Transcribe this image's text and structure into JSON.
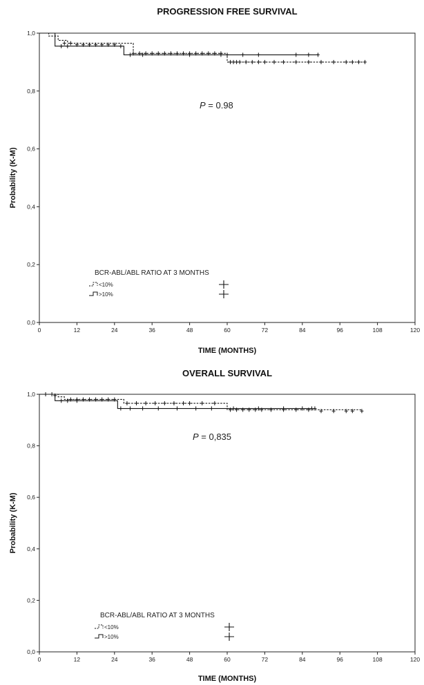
{
  "chart_data": [
    {
      "type": "line",
      "title": "PROGRESSION FREE SURVIVAL",
      "xlabel": "TIME (MONTHS)",
      "ylabel": "Probability (K-M)",
      "xlim": [
        0,
        120
      ],
      "ylim": [
        0.0,
        1.0
      ],
      "xticks": [
        "0",
        "12",
        "24",
        "36",
        "48",
        "60",
        "72",
        "84",
        "96",
        "108",
        "120"
      ],
      "yticks": [
        "0,0",
        "0,2",
        "0,4",
        "0,6",
        "0,8",
        "1,0"
      ],
      "grid": false,
      "annotation": {
        "p_symbol": "P",
        "p_text": "= 0.98"
      },
      "legend": {
        "title": "BCR-ABL/ABL RATIO AT 3 MONTHS",
        "position": "bottom-left",
        "entries": [
          {
            "label": "<10%",
            "line_style": "dashed"
          },
          {
            "label": ">10%",
            "line_style": "solid"
          }
        ]
      },
      "series": [
        {
          "name": "<10%",
          "line_style": "dashed",
          "steps": [
            [
              0,
              1.0
            ],
            [
              3,
              0.99
            ],
            [
              6,
              0.975
            ],
            [
              9,
              0.965
            ],
            [
              30,
              0.93
            ],
            [
              60,
              0.9
            ],
            [
              104,
              0.9
            ]
          ],
          "censored": [
            [
              8,
              0.965
            ],
            [
              10,
              0.965
            ],
            [
              12,
              0.96
            ],
            [
              14,
              0.96
            ],
            [
              16,
              0.96
            ],
            [
              18,
              0.96
            ],
            [
              20,
              0.96
            ],
            [
              22,
              0.96
            ],
            [
              24,
              0.96
            ],
            [
              30,
              0.93
            ],
            [
              32,
              0.93
            ],
            [
              34,
              0.93
            ],
            [
              36,
              0.93
            ],
            [
              38,
              0.93
            ],
            [
              40,
              0.93
            ],
            [
              42,
              0.93
            ],
            [
              44,
              0.93
            ],
            [
              46,
              0.93
            ],
            [
              48,
              0.93
            ],
            [
              50,
              0.93
            ],
            [
              52,
              0.93
            ],
            [
              54,
              0.93
            ],
            [
              56,
              0.93
            ],
            [
              58,
              0.93
            ],
            [
              61,
              0.9
            ],
            [
              62,
              0.9
            ],
            [
              63,
              0.9
            ],
            [
              64,
              0.9
            ],
            [
              66,
              0.9
            ],
            [
              68,
              0.9
            ],
            [
              70,
              0.9
            ],
            [
              72,
              0.9
            ],
            [
              75,
              0.9
            ],
            [
              78,
              0.9
            ],
            [
              82,
              0.9
            ],
            [
              86,
              0.9
            ],
            [
              90,
              0.9
            ],
            [
              94,
              0.9
            ],
            [
              98,
              0.9
            ],
            [
              100,
              0.9
            ],
            [
              102,
              0.9
            ],
            [
              104,
              0.9
            ]
          ]
        },
        {
          "name": ">10%",
          "line_style": "solid",
          "steps": [
            [
              0,
              1.0
            ],
            [
              5,
              0.955
            ],
            [
              27,
              0.925
            ],
            [
              89,
              0.925
            ]
          ],
          "censored": [
            [
              7,
              0.955
            ],
            [
              9,
              0.955
            ],
            [
              26,
              0.955
            ],
            [
              29,
              0.925
            ],
            [
              33,
              0.925
            ],
            [
              48,
              0.925
            ],
            [
              58,
              0.925
            ],
            [
              60,
              0.925
            ],
            [
              65,
              0.925
            ],
            [
              70,
              0.925
            ],
            [
              82,
              0.925
            ],
            [
              86,
              0.925
            ],
            [
              89,
              0.925
            ]
          ]
        }
      ]
    },
    {
      "type": "line",
      "title": "OVERALL SURVIVAL",
      "xlabel": "TIME (MONTHS)",
      "ylabel": "Probability (K-M)",
      "xlim": [
        0,
        120
      ],
      "ylim": [
        0.0,
        1.0
      ],
      "xticks": [
        "0",
        "12",
        "24",
        "36",
        "48",
        "60",
        "72",
        "84",
        "96",
        "108",
        "120"
      ],
      "yticks": [
        "0,0",
        "0,2",
        "0,4",
        "0,6",
        "0,8",
        "1,0"
      ],
      "grid": false,
      "annotation": {
        "p_symbol": "P",
        "p_text": "= 0,835"
      },
      "legend": {
        "title": "BCR-ABL/ABL RATIO AT 3 MONTHS",
        "position": "bottom-left",
        "entries": [
          {
            "label": "<10%",
            "line_style": "dashed"
          },
          {
            "label": ">10%",
            "line_style": "solid"
          }
        ]
      },
      "series": [
        {
          "name": "<10%",
          "line_style": "dashed",
          "steps": [
            [
              0,
              1.0
            ],
            [
              6,
              0.99
            ],
            [
              8,
              0.98
            ],
            [
              27,
              0.965
            ],
            [
              60,
              0.94
            ],
            [
              103,
              0.935
            ]
          ],
          "censored": [
            [
              2,
              1.0
            ],
            [
              4,
              1.0
            ],
            [
              5,
              0.995
            ],
            [
              10,
              0.98
            ],
            [
              12,
              0.98
            ],
            [
              14,
              0.98
            ],
            [
              16,
              0.98
            ],
            [
              18,
              0.98
            ],
            [
              20,
              0.98
            ],
            [
              22,
              0.98
            ],
            [
              24,
              0.98
            ],
            [
              28,
              0.965
            ],
            [
              31,
              0.965
            ],
            [
              34,
              0.965
            ],
            [
              37,
              0.965
            ],
            [
              40,
              0.965
            ],
            [
              43,
              0.965
            ],
            [
              46,
              0.965
            ],
            [
              48,
              0.965
            ],
            [
              52,
              0.965
            ],
            [
              56,
              0.965
            ],
            [
              61,
              0.94
            ],
            [
              63,
              0.94
            ],
            [
              65,
              0.94
            ],
            [
              67,
              0.94
            ],
            [
              69,
              0.94
            ],
            [
              71,
              0.94
            ],
            [
              74,
              0.94
            ],
            [
              78,
              0.94
            ],
            [
              82,
              0.94
            ],
            [
              86,
              0.94
            ],
            [
              90,
              0.935
            ],
            [
              94,
              0.935
            ],
            [
              98,
              0.935
            ],
            [
              100,
              0.935
            ],
            [
              103,
              0.935
            ]
          ]
        },
        {
          "name": ">10%",
          "line_style": "solid",
          "steps": [
            [
              0,
              1.0
            ],
            [
              5,
              0.975
            ],
            [
              25,
              0.945
            ],
            [
              88,
              0.945
            ]
          ],
          "censored": [
            [
              7,
              0.975
            ],
            [
              9,
              0.975
            ],
            [
              12,
              0.975
            ],
            [
              26,
              0.945
            ],
            [
              29,
              0.945
            ],
            [
              33,
              0.945
            ],
            [
              38,
              0.945
            ],
            [
              44,
              0.945
            ],
            [
              50,
              0.945
            ],
            [
              55,
              0.945
            ],
            [
              62,
              0.945
            ],
            [
              70,
              0.945
            ],
            [
              78,
              0.945
            ],
            [
              84,
              0.945
            ],
            [
              87,
              0.945
            ],
            [
              88,
              0.945
            ]
          ]
        }
      ]
    }
  ]
}
